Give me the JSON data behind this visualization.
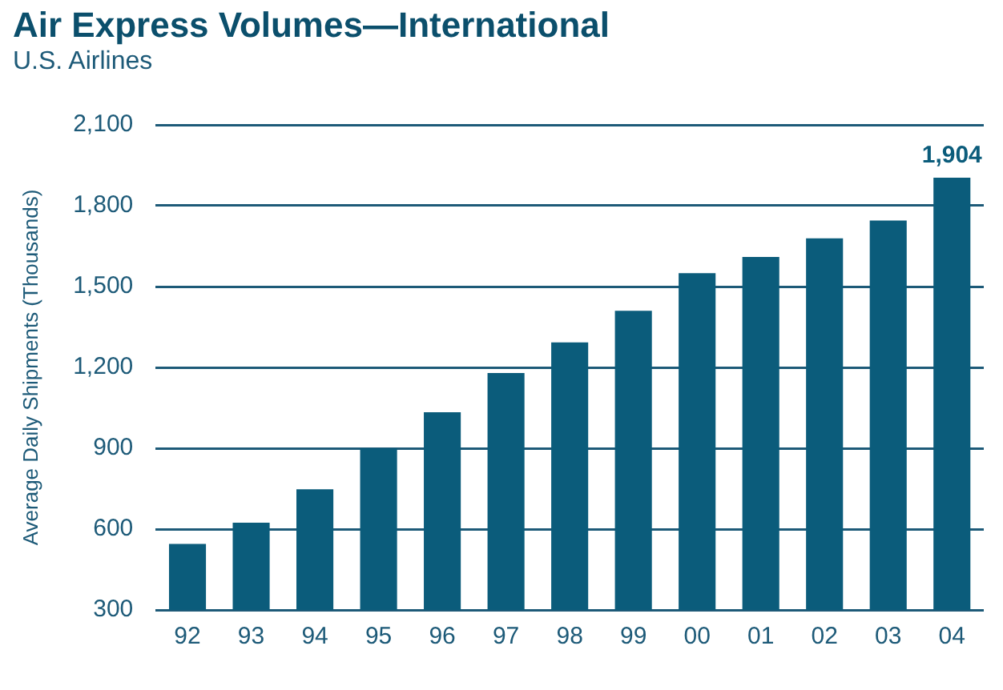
{
  "chart_data": {
    "type": "bar",
    "title": "Air Express Volumes—International",
    "subtitle": "U.S. Airlines",
    "ylabel": "Average Daily Shipments (Thousands)",
    "categories": [
      "92",
      "93",
      "94",
      "95",
      "96",
      "97",
      "98",
      "99",
      "00",
      "01",
      "02",
      "03",
      "04"
    ],
    "values": [
      545,
      624,
      748,
      900,
      1034,
      1179,
      1293,
      1410,
      1550,
      1610,
      1679,
      1745,
      1904
    ],
    "value_labels": [
      null,
      null,
      null,
      null,
      null,
      null,
      null,
      null,
      null,
      null,
      null,
      null,
      "1,904"
    ],
    "color": "#0b5c7b",
    "ylim": [
      300,
      2100
    ],
    "yticks": [
      {
        "value": 300,
        "label": "300"
      },
      {
        "value": 600,
        "label": "600"
      },
      {
        "value": 900,
        "label": "900"
      },
      {
        "value": 1200,
        "label": "1,200"
      },
      {
        "value": 1500,
        "label": "1,500"
      },
      {
        "value": 1800,
        "label": "1,800"
      },
      {
        "value": 2100,
        "label": "2,100"
      }
    ],
    "grid": "y",
    "legend": false
  }
}
